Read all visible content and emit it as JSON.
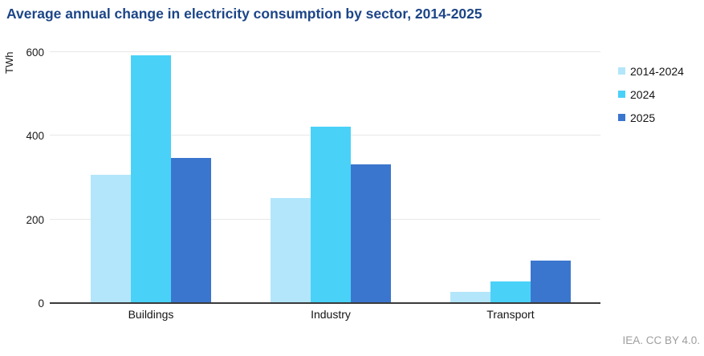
{
  "title": "Average annual change in electricity consumption by sector, 2014-2025",
  "footer": {
    "attribution": "IEA. CC BY 4.0."
  },
  "chart_data": {
    "type": "bar",
    "title": "Average annual change in electricity consumption by sector, 2014-2025",
    "xlabel": "",
    "ylabel": "TWh",
    "ylim": [
      0,
      600
    ],
    "yticks": [
      0,
      200,
      400,
      600
    ],
    "grid": true,
    "legend_position": "right",
    "categories": [
      "Buildings",
      "Industry",
      "Transport"
    ],
    "series": [
      {
        "name": "2014-2024",
        "color": "#B3E6FA",
        "values": [
          305,
          250,
          25
        ]
      },
      {
        "name": "2024",
        "color": "#4AD1F8",
        "values": [
          590,
          420,
          50
        ]
      },
      {
        "name": "2025",
        "color": "#3B76CE",
        "values": [
          345,
          330,
          100
        ]
      }
    ]
  }
}
